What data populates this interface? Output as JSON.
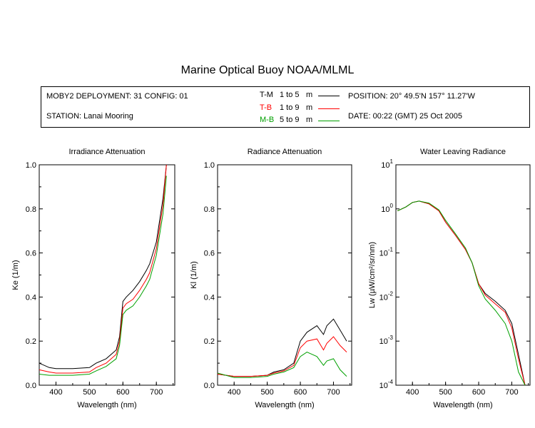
{
  "header": {
    "title": "Marine Optical Buoy NOAA/MLML",
    "deployment": "MOBY2 DEPLOYMENT: 31 CONFIG: 01",
    "station": "STATION: Lanai Mooring",
    "position": "POSITION: 20° 49.5'N 157° 11.27'W",
    "date": "DATE: 00:22 (GMT) 25 Oct 2005"
  },
  "legend": [
    {
      "code": "T-M",
      "range": "1 to 5",
      "unit": "m",
      "color": "#000000"
    },
    {
      "code": "T-B",
      "range": "1 to 9",
      "unit": "m",
      "color": "#ff0000"
    },
    {
      "code": "M-B",
      "range": "5 to 9",
      "unit": "m",
      "color": "#00a000"
    }
  ],
  "chart_data": [
    {
      "type": "line",
      "title": "Irradiance Attenuation",
      "xlabel": "Wavelength (nm)",
      "ylabel": "Ke (1/m)",
      "xlim": [
        350,
        755
      ],
      "ylim": [
        0,
        1.0
      ],
      "xticks": [
        "400",
        "500",
        "600",
        "700"
      ],
      "yticks": [
        "0.0",
        "0.2",
        "0.4",
        "0.6",
        "0.8",
        "1.0"
      ],
      "x": [
        350,
        380,
        400,
        450,
        500,
        520,
        550,
        580,
        590,
        600,
        610,
        630,
        650,
        670,
        680,
        700,
        720,
        730
      ],
      "series": [
        {
          "name": "T-M",
          "color": "#000000",
          "values": [
            0.1,
            0.08,
            0.075,
            0.075,
            0.08,
            0.1,
            0.12,
            0.16,
            0.22,
            0.38,
            0.4,
            0.43,
            0.47,
            0.52,
            0.55,
            0.65,
            0.85,
            1.0
          ]
        },
        {
          "name": "T-B",
          "color": "#ff0000",
          "values": [
            0.07,
            0.06,
            0.055,
            0.055,
            0.06,
            0.08,
            0.1,
            0.14,
            0.2,
            0.35,
            0.37,
            0.39,
            0.43,
            0.48,
            0.51,
            0.62,
            0.82,
            1.0
          ]
        },
        {
          "name": "M-B",
          "color": "#00a000",
          "values": [
            0.05,
            0.045,
            0.045,
            0.045,
            0.05,
            0.065,
            0.085,
            0.12,
            0.18,
            0.32,
            0.34,
            0.36,
            0.4,
            0.45,
            0.48,
            0.59,
            0.78,
            0.95
          ]
        }
      ]
    },
    {
      "type": "line",
      "title": "Radiance Attenuation",
      "xlabel": "Wavelength (nm)",
      "ylabel": "Kl (1/m)",
      "xlim": [
        350,
        755
      ],
      "ylim": [
        0,
        1.0
      ],
      "xticks": [
        "400",
        "500",
        "600",
        "700"
      ],
      "yticks": [
        "0.0",
        "0.2",
        "0.4",
        "0.6",
        "0.8",
        "1.0"
      ],
      "x": [
        350,
        400,
        450,
        500,
        520,
        550,
        580,
        600,
        620,
        650,
        670,
        680,
        700,
        720,
        740
      ],
      "series": [
        {
          "name": "T-M",
          "color": "#000000",
          "values": [
            0.05,
            0.04,
            0.04,
            0.045,
            0.06,
            0.07,
            0.1,
            0.2,
            0.24,
            0.27,
            0.23,
            0.27,
            0.3,
            0.25,
            0.2
          ]
        },
        {
          "name": "T-B",
          "color": "#ff0000",
          "values": [
            0.05,
            0.04,
            0.04,
            0.045,
            0.055,
            0.065,
            0.09,
            0.17,
            0.2,
            0.21,
            0.16,
            0.19,
            0.22,
            0.18,
            0.15
          ]
        },
        {
          "name": "M-B",
          "color": "#00a000",
          "values": [
            0.055,
            0.035,
            0.035,
            0.04,
            0.05,
            0.06,
            0.08,
            0.13,
            0.15,
            0.13,
            0.09,
            0.11,
            0.12,
            0.07,
            0.04
          ]
        }
      ]
    },
    {
      "type": "line",
      "title": "Water Leaving Radiance",
      "xlabel": "Wavelength (nm)",
      "ylabel": "Lw (µW/cm²/sr/nm)",
      "yscale": "log",
      "xlim": [
        350,
        755
      ],
      "ylim": [
        0.0001,
        10
      ],
      "xticks": [
        "400",
        "500",
        "600",
        "700"
      ],
      "yticks": [
        "10^-4",
        "10^-3",
        "10^-2",
        "10^-1",
        "10^0",
        "10^1"
      ],
      "x": [
        355,
        380,
        400,
        420,
        450,
        480,
        500,
        530,
        560,
        580,
        600,
        620,
        650,
        680,
        700,
        720,
        740
      ],
      "series": [
        {
          "name": "T-M",
          "color": "#000000",
          "values": [
            0.9,
            1.1,
            1.4,
            1.5,
            1.3,
            0.9,
            0.5,
            0.25,
            0.12,
            0.06,
            0.02,
            0.012,
            0.008,
            0.005,
            0.0025,
            0.0005,
            0.0001
          ]
        },
        {
          "name": "T-B",
          "color": "#ff0000",
          "values": [
            0.9,
            1.1,
            1.4,
            1.5,
            1.3,
            0.9,
            0.5,
            0.25,
            0.12,
            0.06,
            0.02,
            0.011,
            0.007,
            0.0045,
            0.002,
            0.0004,
            0.0001
          ]
        },
        {
          "name": "M-B",
          "color": "#00a000",
          "values": [
            0.9,
            1.1,
            1.4,
            1.5,
            1.35,
            0.95,
            0.55,
            0.27,
            0.13,
            0.06,
            0.018,
            0.009,
            0.005,
            0.0025,
            0.001,
            0.0002,
            0.0001
          ]
        }
      ]
    }
  ]
}
